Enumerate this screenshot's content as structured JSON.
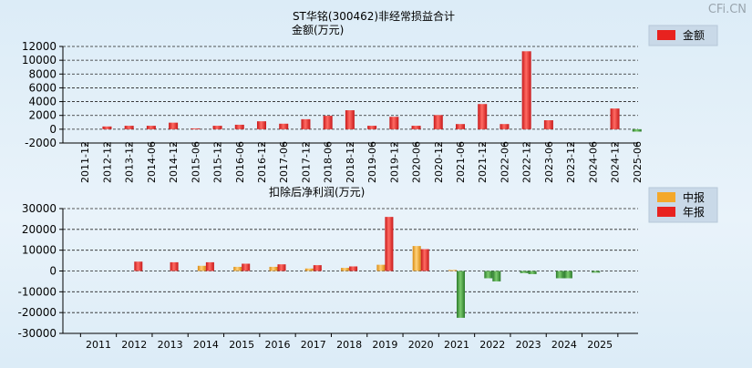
{
  "watermark": "CFi.CN",
  "colors": {
    "red": "#e8221f",
    "orange": "#f4a82a",
    "green": "#3d9a3d",
    "grid": "#000000"
  },
  "chart_data": [
    {
      "type": "bar",
      "title": "ST华铭(300462)非经常损益合计",
      "ylabel": "金额(万元)",
      "legend_position": "top-right",
      "grid": true,
      "ylim": [
        -2000,
        12000
      ],
      "yticks": [
        -2000,
        0,
        2000,
        4000,
        6000,
        8000,
        10000,
        12000
      ],
      "categories": [
        "2011-12",
        "2012-12",
        "2013-12",
        "2014-06",
        "2014-12",
        "2015-06",
        "2015-12",
        "2016-06",
        "2016-12",
        "2017-06",
        "2017-12",
        "2018-06",
        "2018-12",
        "2019-06",
        "2019-12",
        "2020-06",
        "2020-12",
        "2021-06",
        "2021-12",
        "2022-06",
        "2022-12",
        "2023-06",
        "2023-12",
        "2024-06",
        "2024-12",
        "2025-06"
      ],
      "series": [
        {
          "name": "金额",
          "color": "#e8221f",
          "values": [
            0,
            400,
            500,
            500,
            950,
            120,
            500,
            650,
            1150,
            800,
            1450,
            1950,
            2750,
            500,
            1800,
            500,
            2050,
            750,
            3650,
            750,
            11300,
            1300,
            0,
            0,
            3000,
            -350
          ]
        }
      ]
    },
    {
      "type": "bar",
      "title": "扣除后净利润(万元)",
      "legend_position": "top-right",
      "grid": true,
      "ylim": [
        -30000,
        30000
      ],
      "yticks": [
        -30000,
        -20000,
        -10000,
        0,
        10000,
        20000,
        30000
      ],
      "categories": [
        "2011",
        "2012",
        "2013",
        "2014",
        "2015",
        "2016",
        "2017",
        "2018",
        "2019",
        "2020",
        "2021",
        "2022",
        "2023",
        "2024",
        "2025"
      ],
      "series": [
        {
          "name": "中报",
          "color": "#f4a82a",
          "values": [
            null,
            null,
            null,
            2500,
            2000,
            2000,
            1200,
            1500,
            3000,
            12000,
            500,
            -3500,
            -1000,
            -3500,
            -800
          ]
        },
        {
          "name": "年报",
          "color": "#e8221f",
          "values": [
            null,
            4500,
            4200,
            4200,
            3500,
            3200,
            2800,
            2200,
            26000,
            10500,
            -22500,
            -5000,
            -1500,
            -3500,
            null
          ]
        }
      ]
    }
  ]
}
